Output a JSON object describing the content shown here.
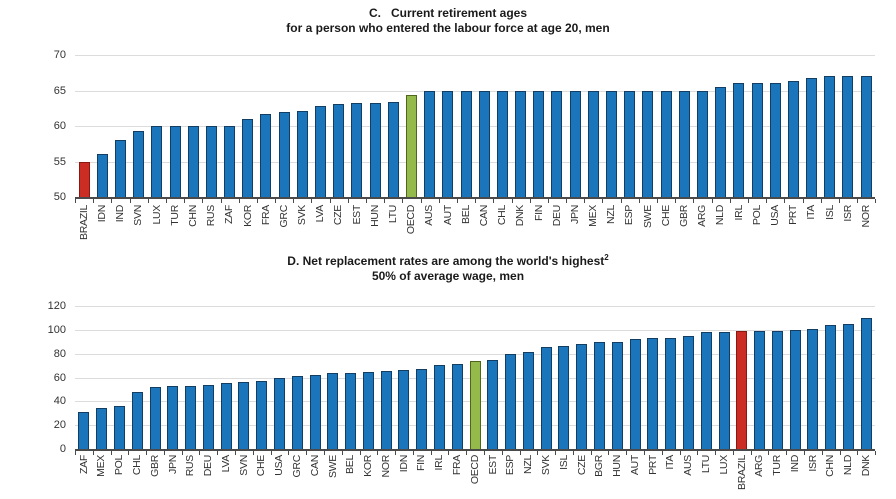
{
  "palette": {
    "default": {
      "fill": "#1B75BB",
      "stroke": "#123E63"
    },
    "brazil": {
      "fill": "#CB2C24",
      "stroke": "#8A1812"
    },
    "oecd": {
      "fill": "#95BA4C",
      "stroke": "#4F661C"
    }
  },
  "highlight_map": {
    "BRAZIL": "brazil",
    "OECD": "oecd"
  },
  "style_colors": {
    "gridline": "#DCDCDC",
    "axis": "#4A4A4A",
    "tick_text": "#333333",
    "title_text": "#1A1A1A"
  },
  "chart_data": [
    {
      "type": "bar",
      "title_line1": "C.   Current retirement ages",
      "title_sup": "",
      "subtitle": "for a person who entered the labour force at age 20, men",
      "ylim": [
        50,
        70
      ],
      "ytick_step": 5,
      "yticks": [
        70,
        65,
        60,
        55,
        50
      ],
      "grid": true,
      "categories": [
        "BRAZIL",
        "IDN",
        "IND",
        "SVN",
        "LUX",
        "TUR",
        "CHN",
        "RUS",
        "ZAF",
        "KOR",
        "FRA",
        "GRC",
        "SVK",
        "LVA",
        "CZE",
        "EST",
        "HUN",
        "LTU",
        "OECD",
        "AUS",
        "AUT",
        "BEL",
        "CAN",
        "CHL",
        "DNK",
        "FIN",
        "DEU",
        "JPN",
        "MEX",
        "NZL",
        "ESP",
        "SWE",
        "CHE",
        "GBR",
        "ARG",
        "NLD",
        "IRL",
        "POL",
        "USA",
        "PRT",
        "ITA",
        "ISL",
        "ISR",
        "NOR"
      ],
      "values": [
        55,
        56,
        58,
        59.3,
        60,
        60,
        60,
        60,
        60,
        61,
        61.7,
        62,
        62.1,
        62.8,
        63.1,
        63.2,
        63.2,
        63.4,
        64.3,
        65,
        65,
        65,
        65,
        65,
        65,
        65,
        65,
        65,
        65,
        65,
        65,
        65,
        65,
        65,
        65,
        65.5,
        66,
        66,
        66,
        66.4,
        66.7,
        67,
        67,
        67
      ]
    },
    {
      "type": "bar",
      "title_line1": "D. Net replacement rates are among the world's highest",
      "title_sup": "2",
      "subtitle": "50% of average wage, men",
      "ylim": [
        0,
        120
      ],
      "ytick_step": 20,
      "yticks": [
        120,
        100,
        80,
        60,
        40,
        20,
        0
      ],
      "grid": true,
      "categories": [
        "ZAF",
        "MEX",
        "POL",
        "CHL",
        "GBR",
        "JPN",
        "RUS",
        "DEU",
        "LVA",
        "SVN",
        "CHE",
        "USA",
        "GRC",
        "CAN",
        "SWE",
        "BEL",
        "KOR",
        "NOR",
        "IDN",
        "FIN",
        "IRL",
        "FRA",
        "OECD",
        "EST",
        "ESP",
        "NZL",
        "SVK",
        "ISL",
        "CZE",
        "BGR",
        "HUN",
        "AUT",
        "PRT",
        "ITA",
        "AUS",
        "LTU",
        "LUX",
        "BRAZIL",
        "ARG",
        "TUR",
        "IND",
        "ISR",
        "CHN",
        "NLD",
        "DNK"
      ],
      "values": [
        31,
        34,
        36.5,
        47.5,
        52,
        52.5,
        53,
        54,
        55,
        56.5,
        57,
        60,
        61,
        62.5,
        63.5,
        63.5,
        64.5,
        65.5,
        66,
        67.5,
        70.5,
        71,
        73.5,
        74.5,
        80,
        81.5,
        85.5,
        86.5,
        88.5,
        89.5,
        90,
        92.5,
        93,
        93,
        95,
        98,
        98.5,
        98.8,
        99,
        99,
        99.5,
        101,
        104,
        105,
        110
      ]
    }
  ]
}
